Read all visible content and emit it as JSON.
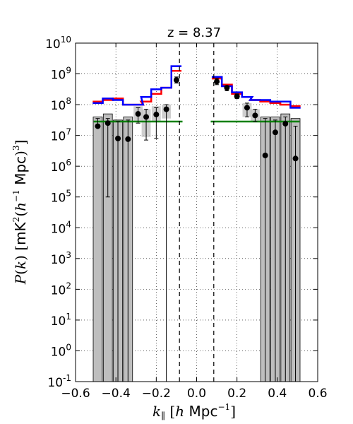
{
  "chart_data": {
    "type": "scatter",
    "title": "z = 8.37",
    "xlabel": "k∥ [h Mpc⁻¹]",
    "ylabel": "P(k) [mK²(h⁻¹ Mpc)³]",
    "xlim": [
      -0.6,
      0.6
    ],
    "ylim_log10": [
      -1,
      10
    ],
    "y_scale": "log",
    "grid": true,
    "x_ticks": [
      -0.6,
      -0.4,
      -0.2,
      0.0,
      0.2,
      0.4,
      0.6
    ],
    "x_tick_labels": [
      "−0.6",
      "−0.4",
      "−0.2",
      "0.0",
      "0.2",
      "0.4",
      "0.6"
    ],
    "y_ticks_log10": [
      -1,
      0,
      1,
      2,
      3,
      4,
      5,
      6,
      7,
      8,
      9,
      10
    ],
    "y_tick_labels": [
      "10",
      "10",
      "10",
      "10",
      "10",
      "10",
      "10",
      "10",
      "10",
      "10",
      "10",
      "10"
    ],
    "y_tick_exponents": [
      "-1",
      "0",
      "1",
      "2",
      "3",
      "4",
      "5",
      "6",
      "7",
      "8",
      "9",
      "10"
    ],
    "dashed_vlines": [
      -0.085,
      0.085
    ],
    "points": [
      {
        "k": -0.49,
        "logP": 7.3,
        "err_lo": null,
        "err_hi": 7.55
      },
      {
        "k": -0.44,
        "logP": 7.4,
        "err_lo": 5.0,
        "err_hi": 7.55
      },
      {
        "k": -0.39,
        "logP": 6.9,
        "err_lo": -1.0,
        "err_hi": 7.45
      },
      {
        "k": -0.34,
        "logP": 6.88,
        "err_lo": -1.0,
        "err_hi": 7.5
      },
      {
        "k": -0.29,
        "logP": 7.7,
        "err_lo": 7.4,
        "err_hi": 7.9
      },
      {
        "k": -0.25,
        "logP": 7.6,
        "err_lo": 6.85,
        "err_hi": 7.85
      },
      {
        "k": -0.2,
        "logP": 7.68,
        "err_lo": 6.9,
        "err_hi": 7.9
      },
      {
        "k": -0.15,
        "logP": 7.85,
        "err_lo": -1.0,
        "err_hi": 8.0
      },
      {
        "k": -0.1,
        "logP": 8.8,
        "err_lo": 8.7,
        "err_hi": 8.9
      },
      {
        "k": 0.1,
        "logP": 8.75,
        "err_lo": 8.65,
        "err_hi": 8.85
      },
      {
        "k": 0.15,
        "logP": 8.55,
        "err_lo": 8.45,
        "err_hi": 8.6
      },
      {
        "k": 0.2,
        "logP": 8.27,
        "err_lo": 8.2,
        "err_hi": 8.35
      },
      {
        "k": 0.25,
        "logP": 7.9,
        "err_lo": 7.6,
        "err_hi": 8.05
      },
      {
        "k": 0.29,
        "logP": 7.65,
        "err_lo": 7.45,
        "err_hi": 7.85
      },
      {
        "k": 0.34,
        "logP": 6.35,
        "err_lo": -1.0,
        "err_hi": 7.55
      },
      {
        "k": 0.39,
        "logP": 7.1,
        "err_lo": -1.0,
        "err_hi": 7.5
      },
      {
        "k": 0.44,
        "logP": 7.38,
        "err_lo": -1.0,
        "err_hi": 7.6
      },
      {
        "k": 0.49,
        "logP": 6.25,
        "err_lo": -1.0,
        "err_hi": 7.3
      }
    ],
    "gray_bars": [
      {
        "k": -0.49,
        "top": 7.6
      },
      {
        "k": -0.44,
        "top": 7.7
      },
      {
        "k": -0.39,
        "top": 7.5
      },
      {
        "k": -0.34,
        "top": 7.6
      },
      {
        "k": -0.29,
        "top": 7.95,
        "bottom": 7.45
      },
      {
        "k": -0.25,
        "top": 7.85,
        "bottom": 6.95
      },
      {
        "k": -0.2,
        "top": 7.95,
        "bottom": 7.45
      },
      {
        "k": -0.15,
        "top": 8.0,
        "bottom": 7.55
      },
      {
        "k": 0.25,
        "top": 8.05,
        "bottom": 7.6
      },
      {
        "k": 0.29,
        "top": 7.85,
        "bottom": 7.45
      },
      {
        "k": 0.34,
        "top": 7.6
      },
      {
        "k": 0.39,
        "top": 7.6
      },
      {
        "k": 0.44,
        "top": 7.7
      },
      {
        "k": 0.49,
        "top": 7.55
      }
    ],
    "bar_width": 0.045,
    "series": [
      {
        "color": "#ff0000",
        "steps": [
          {
            "k": -0.49,
            "logP": 8.1
          },
          {
            "k": -0.44,
            "logP": 8.15
          },
          {
            "k": -0.39,
            "logP": 8.2
          },
          {
            "k": -0.34,
            "logP": 8.0
          },
          {
            "k": -0.29,
            "logP": 8.0
          },
          {
            "k": -0.25,
            "logP": 8.1
          },
          {
            "k": -0.2,
            "logP": 8.35
          },
          {
            "k": -0.15,
            "logP": 8.55
          },
          {
            "k": -0.1,
            "logP": 9.1
          },
          {
            "k": 0.1,
            "logP": 8.85
          },
          {
            "k": 0.15,
            "logP": 8.65
          },
          {
            "k": 0.2,
            "logP": 8.35
          },
          {
            "k": 0.25,
            "logP": 8.25
          },
          {
            "k": 0.29,
            "logP": 8.15
          },
          {
            "k": 0.34,
            "logP": 8.1
          },
          {
            "k": 0.39,
            "logP": 8.05
          },
          {
            "k": 0.44,
            "logP": 8.0
          },
          {
            "k": 0.49,
            "logP": 7.95
          }
        ]
      },
      {
        "color": "#0000ff",
        "steps": [
          {
            "k": -0.49,
            "logP": 8.05
          },
          {
            "k": -0.44,
            "logP": 8.2
          },
          {
            "k": -0.39,
            "logP": 8.15
          },
          {
            "k": -0.34,
            "logP": 8.0
          },
          {
            "k": -0.29,
            "logP": 8.0
          },
          {
            "k": -0.25,
            "logP": 8.25
          },
          {
            "k": -0.2,
            "logP": 8.5
          },
          {
            "k": -0.15,
            "logP": 8.55
          },
          {
            "k": -0.1,
            "logP": 9.25
          },
          {
            "k": 0.1,
            "logP": 8.9
          },
          {
            "k": 0.15,
            "logP": 8.6
          },
          {
            "k": 0.2,
            "logP": 8.4
          },
          {
            "k": 0.25,
            "logP": 8.25
          },
          {
            "k": 0.29,
            "logP": 8.15
          },
          {
            "k": 0.34,
            "logP": 8.15
          },
          {
            "k": 0.39,
            "logP": 8.1
          },
          {
            "k": 0.44,
            "logP": 8.1
          },
          {
            "k": 0.49,
            "logP": 7.9
          }
        ]
      }
    ],
    "green_lines": [
      {
        "k_start": -0.51,
        "k_end": -0.07,
        "logP": 7.45
      },
      {
        "k_start": 0.07,
        "k_end": 0.51,
        "logP": 7.45
      }
    ],
    "colors": {
      "green": "#008000",
      "gray": "#bebebe",
      "dark_gray": "#707070",
      "points": "#000000"
    }
  }
}
